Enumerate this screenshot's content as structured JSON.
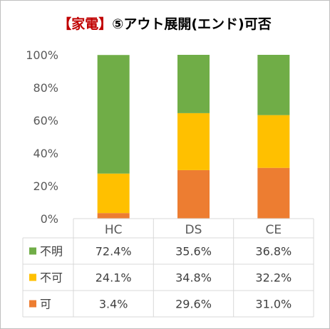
{
  "chart_data": {
    "type": "bar",
    "stacked": true,
    "percent_stacked": true,
    "title_prefix": "【家電】",
    "title": "⑤アウト展開(エンド)可否",
    "categories": [
      "HC",
      "DS",
      "CE"
    ],
    "ylim": [
      0,
      100
    ],
    "yticks": [
      "0%",
      "20%",
      "40%",
      "60%",
      "80%",
      "100%"
    ],
    "grid": false,
    "legend": "data-table",
    "series": [
      {
        "name": "可",
        "color": "#ed7d31",
        "values": [
          3.4,
          29.6,
          31.0
        ],
        "labels": [
          "3.4%",
          "29.6%",
          "31.0%"
        ]
      },
      {
        "name": "不可",
        "color": "#ffc000",
        "values": [
          24.1,
          34.8,
          32.2
        ],
        "labels": [
          "24.1%",
          "34.8%",
          "32.2%"
        ]
      },
      {
        "name": "不明",
        "color": "#70ad47",
        "values": [
          72.4,
          35.6,
          36.8
        ],
        "labels": [
          "72.4%",
          "35.6%",
          "36.8%"
        ]
      }
    ],
    "table_row_order": [
      "不明",
      "不可",
      "可"
    ]
  }
}
